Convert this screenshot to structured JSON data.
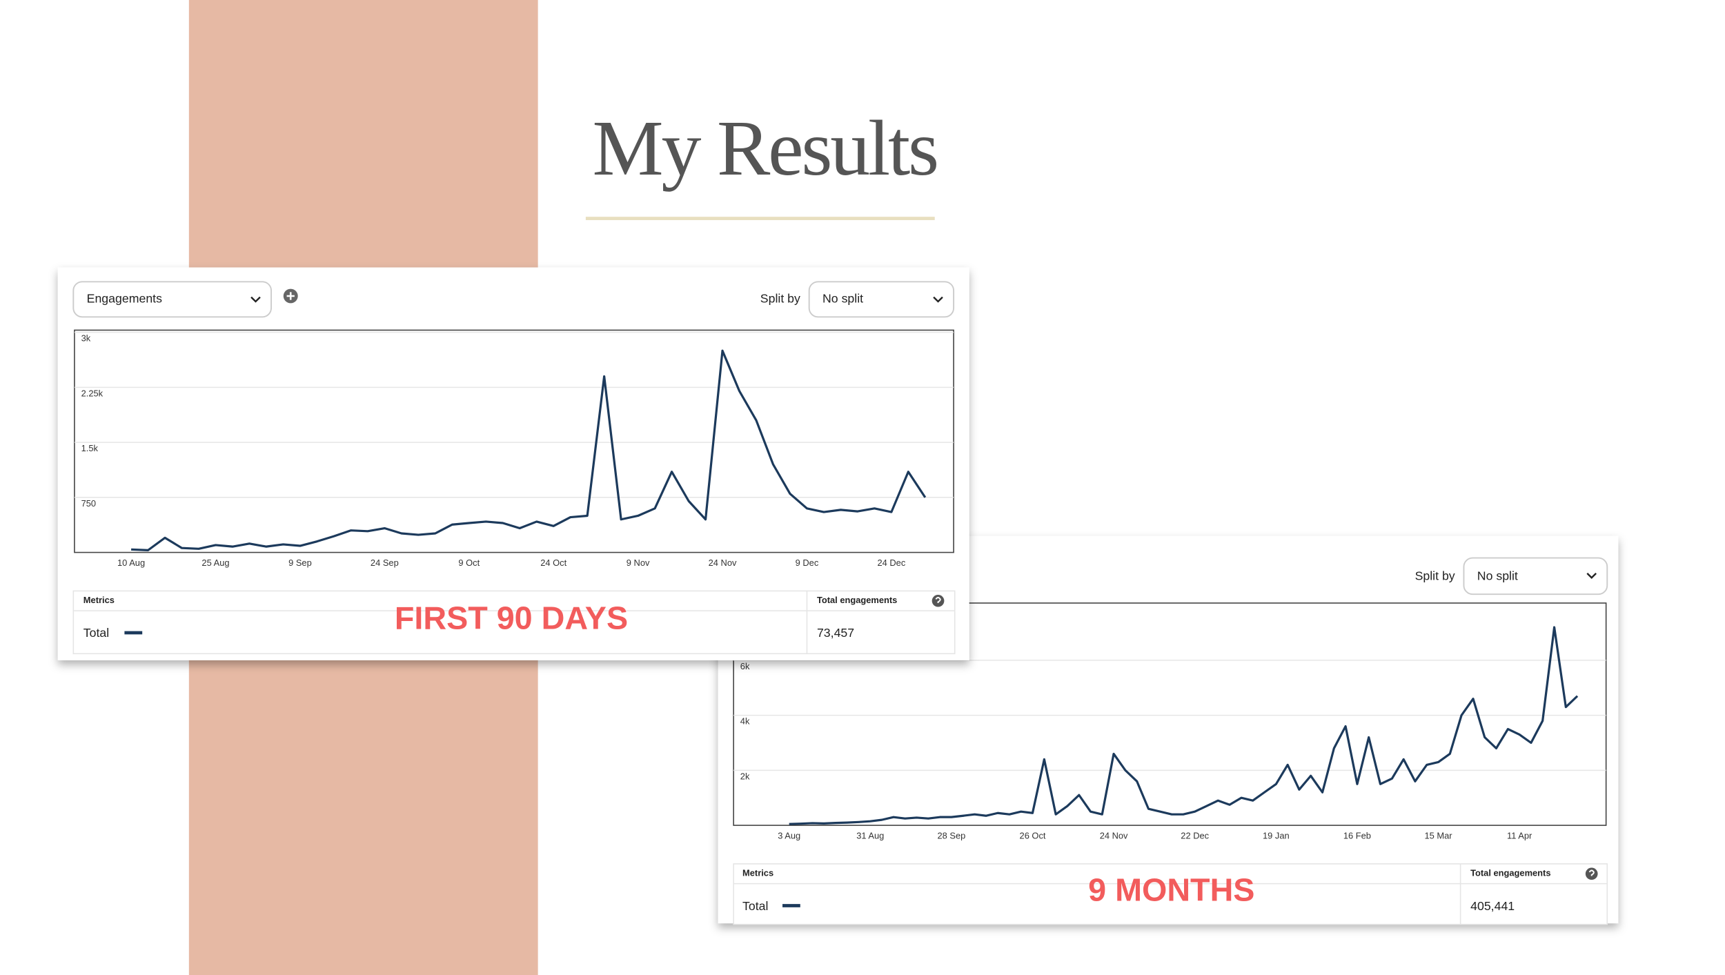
{
  "title": "My Results",
  "chart_data": [
    {
      "type": "line",
      "categories": [
        "10 Aug",
        null,
        null,
        null,
        null,
        "25 Aug",
        null,
        null,
        null,
        null,
        "9 Sep",
        null,
        null,
        null,
        null,
        "24 Sep",
        null,
        null,
        null,
        null,
        "9 Oct",
        null,
        null,
        null,
        null,
        "24 Oct",
        null,
        null,
        null,
        null,
        "9 Nov",
        null,
        null,
        null,
        null,
        "24 Nov",
        null,
        null,
        null,
        null,
        "9 Dec",
        null,
        null,
        null,
        null,
        "24 Dec",
        null,
        null
      ],
      "series": [
        {
          "name": "Total",
          "color": "#1c3a5c",
          "values": [
            40,
            30,
            200,
            60,
            50,
            100,
            80,
            120,
            80,
            110,
            90,
            150,
            220,
            300,
            290,
            330,
            260,
            240,
            260,
            380,
            400,
            420,
            400,
            330,
            420,
            360,
            480,
            500,
            2400,
            450,
            500,
            600,
            1100,
            700,
            450,
            2750,
            2200,
            1800,
            1200,
            800,
            600,
            550,
            580,
            560,
            600,
            550,
            1100,
            750
          ]
        }
      ],
      "ylim": [
        0,
        3000
      ],
      "yticks": [
        750,
        {
          "value": 1500,
          "label": "1.5k"
        },
        {
          "value": 2250,
          "label": "2.25k"
        },
        {
          "value": 3000,
          "label": "3k"
        }
      ],
      "grid": true
    },
    {
      "type": "line",
      "categories": [
        "3 Aug",
        null,
        null,
        null,
        null,
        null,
        null,
        "31 Aug",
        null,
        null,
        null,
        null,
        null,
        null,
        "28 Sep",
        null,
        null,
        null,
        null,
        null,
        null,
        "26 Oct",
        null,
        null,
        null,
        null,
        null,
        null,
        "24 Nov",
        null,
        null,
        null,
        null,
        null,
        null,
        "22 Dec",
        null,
        null,
        null,
        null,
        null,
        null,
        "19 Jan",
        null,
        null,
        null,
        null,
        null,
        null,
        "16 Feb",
        null,
        null,
        null,
        null,
        null,
        null,
        "15 Mar",
        null,
        null,
        null,
        null,
        null,
        null,
        "11 Apr",
        null,
        null,
        null,
        null,
        null
      ],
      "series": [
        {
          "name": "Total",
          "color": "#1c3a5c",
          "values": [
            50,
            60,
            80,
            70,
            90,
            100,
            120,
            150,
            200,
            300,
            250,
            280,
            250,
            300,
            300,
            350,
            400,
            350,
            450,
            400,
            500,
            450,
            2400,
            400,
            700,
            1100,
            500,
            400,
            2600,
            2000,
            1600,
            600,
            500,
            400,
            400,
            500,
            700,
            900,
            750,
            1000,
            900,
            1200,
            1500,
            2200,
            1300,
            1800,
            1200,
            2800,
            3600,
            1500,
            3200,
            1500,
            1700,
            2400,
            1600,
            2200,
            2300,
            2600,
            4000,
            4600,
            3200,
            2800,
            3500,
            3300,
            3000,
            3800,
            7200,
            4300,
            4700
          ]
        }
      ],
      "ylim": [
        0,
        8000
      ],
      "yticks": [
        {
          "value": 2000,
          "label": "2k"
        },
        {
          "value": 4000,
          "label": "4k"
        },
        {
          "value": 6000,
          "label": "6k"
        }
      ],
      "grid": true
    }
  ],
  "panels": [
    {
      "metric": "Engagements",
      "split_label": "Split by",
      "split_value": "No split",
      "metrics_header": "Metrics",
      "total_header": "Total engagements",
      "total_value": "73,457",
      "caption": "FIRST 90 DAYS"
    },
    {
      "split_label": "Split by",
      "split_value": "No split",
      "metrics_header": "Metrics",
      "total_header": "Total engagements",
      "total_value": "405,441",
      "caption": "9 MONTHS"
    }
  ]
}
